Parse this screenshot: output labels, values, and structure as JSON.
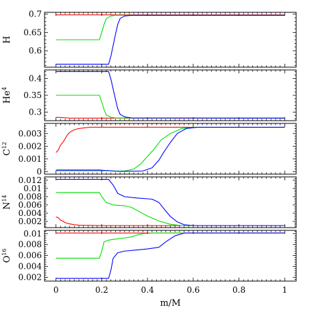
{
  "chart_data": {
    "type": "line",
    "xlabel": "m/M",
    "xlim": [
      -0.05,
      1.05
    ],
    "xticks": [
      0,
      0.2,
      0.4,
      0.6,
      0.8,
      1
    ],
    "xtick_labels": [
      "0",
      "0.2",
      "0.4",
      "0.6",
      "0.8",
      "1"
    ],
    "grid": false,
    "panels": [
      {
        "ylabel": "H",
        "ylabel_sup": "",
        "ylim": [
          0.555,
          0.705
        ],
        "yticks": [
          0.6,
          0.65,
          0.7
        ],
        "ytick_labels": [
          "0.6",
          "0.65",
          "0.7"
        ],
        "series": [
          {
            "color": "#ff0000",
            "x": [
              0,
              1
            ],
            "y": [
              0.698,
              0.698
            ]
          },
          {
            "color": "#00dd00",
            "x": [
              0,
              0.19,
              0.2,
              0.21,
              0.22,
              0.24,
              0.26,
              1
            ],
            "y": [
              0.63,
              0.63,
              0.65,
              0.672,
              0.688,
              0.695,
              0.697,
              0.697
            ]
          },
          {
            "color": "#0000ff",
            "x": [
              0,
              0.23,
              0.24,
              0.25,
              0.26,
              0.27,
              0.28,
              0.3,
              0.33,
              1
            ],
            "y": [
              0.563,
              0.563,
              0.585,
              0.615,
              0.645,
              0.672,
              0.688,
              0.695,
              0.697,
              0.697
            ]
          }
        ]
      },
      {
        "ylabel": "He",
        "ylabel_sup": "4",
        "ylim": [
          0.275,
          0.425
        ],
        "yticks": [
          0.3,
          0.35,
          0.4
        ],
        "ytick_labels": [
          "0.3",
          "0.35",
          "0.4"
        ],
        "series": [
          {
            "color": "#ff0000",
            "x": [
              0,
              0.03,
              0.06,
              0.1,
              1
            ],
            "y": [
              0.285,
              0.284,
              0.2825,
              0.2825,
              0.2825
            ]
          },
          {
            "color": "#00dd00",
            "x": [
              0,
              0.19,
              0.2,
              0.21,
              0.22,
              0.24,
              0.26,
              1
            ],
            "y": [
              0.35,
              0.35,
              0.33,
              0.308,
              0.292,
              0.285,
              0.283,
              0.2825
            ]
          },
          {
            "color": "#0000ff",
            "x": [
              0,
              0.23,
              0.24,
              0.25,
              0.26,
              0.27,
              0.28,
              0.3,
              0.33,
              1
            ],
            "y": [
              0.42,
              0.42,
              0.398,
              0.368,
              0.338,
              0.31,
              0.294,
              0.286,
              0.283,
              0.2825
            ]
          }
        ]
      },
      {
        "ylabel": "C",
        "ylabel_sup": "12",
        "ylim": [
          -0.0002,
          0.0038
        ],
        "yticks": [
          0,
          0.001,
          0.002,
          0.003
        ],
        "ytick_labels": [
          "0",
          "0.001",
          "0.002",
          "0.003"
        ],
        "series": [
          {
            "color": "#ff0000",
            "x": [
              0,
              0.01,
              0.02,
              0.03,
              0.04,
              0.05,
              0.06,
              0.08,
              0.1,
              0.15,
              0.2,
              0.3,
              1
            ],
            "y": [
              0.0015,
              0.0017,
              0.0021,
              0.0023,
              0.0026,
              0.0029,
              0.0031,
              0.0033,
              0.0034,
              0.0035,
              0.0035,
              0.0035,
              0.0035
            ]
          },
          {
            "color": "#00dd00",
            "x": [
              0,
              0.19,
              0.21,
              0.25,
              0.3,
              0.34,
              0.37,
              0.4,
              0.43,
              0.46,
              0.5,
              0.55,
              0.6,
              1
            ],
            "y": [
              0.00015,
              0.00015,
              0.0001,
              5e-05,
              5e-05,
              0.0002,
              0.0006,
              0.0012,
              0.0018,
              0.0025,
              0.003,
              0.0034,
              0.0035,
              0.0035
            ]
          },
          {
            "color": "#0000ff",
            "x": [
              0,
              0.23,
              0.26,
              0.3,
              0.38,
              0.42,
              0.45,
              0.47,
              0.5,
              0.53,
              0.57,
              0.62,
              1
            ],
            "y": [
              8e-05,
              8e-05,
              3e-05,
              2e-05,
              5e-05,
              0.0003,
              0.0009,
              0.0015,
              0.0023,
              0.003,
              0.0034,
              0.0035,
              0.0035
            ]
          }
        ]
      },
      {
        "ylabel": "N",
        "ylabel_sup": "14",
        "ylim": [
          0.0005,
          0.0128
        ],
        "yticks": [
          0.002,
          0.004,
          0.006,
          0.008,
          0.01,
          0.012
        ],
        "ytick_labels": [
          "0.002",
          "0.004",
          "0.006",
          "0.008",
          "0.01",
          "0.012"
        ],
        "series": [
          {
            "color": "#ff0000",
            "x": [
              0,
              0.01,
              0.02,
              0.03,
              0.04,
              0.06,
              0.08,
              0.1,
              0.2,
              1
            ],
            "y": [
              0.0031,
              0.0029,
              0.0023,
              0.0021,
              0.0017,
              0.0014,
              0.0012,
              0.0011,
              0.001,
              0.001
            ]
          },
          {
            "color": "#00dd00",
            "x": [
              0,
              0.19,
              0.2,
              0.22,
              0.25,
              0.3,
              0.33,
              0.36,
              0.4,
              0.45,
              0.5,
              0.55,
              0.6,
              1
            ],
            "y": [
              0.009,
              0.009,
              0.008,
              0.0066,
              0.006,
              0.0058,
              0.0054,
              0.0045,
              0.0033,
              0.0021,
              0.0013,
              0.001,
              0.001,
              0.001
            ]
          },
          {
            "color": "#0000ff",
            "x": [
              0,
              0.23,
              0.25,
              0.27,
              0.3,
              0.35,
              0.42,
              0.45,
              0.47,
              0.5,
              0.53,
              0.56,
              0.6,
              1
            ],
            "y": [
              0.0122,
              0.0122,
              0.0108,
              0.0088,
              0.008,
              0.0077,
              0.0074,
              0.0066,
              0.0052,
              0.0032,
              0.0019,
              0.0012,
              0.001,
              0.001
            ]
          }
        ]
      },
      {
        "ylabel": "O",
        "ylabel_sup": "16",
        "ylim": [
          0.0013,
          0.0106
        ],
        "yticks": [
          0.002,
          0.004,
          0.006,
          0.008,
          0.01
        ],
        "ytick_labels": [
          "0.002",
          "0.004",
          "0.006",
          "0.008",
          "0.01"
        ],
        "series": [
          {
            "color": "#ff0000",
            "x": [
              0,
              1
            ],
            "y": [
              0.0101,
              0.0101
            ]
          },
          {
            "color": "#00dd00",
            "x": [
              0,
              0.19,
              0.2,
              0.21,
              0.23,
              0.26,
              0.3,
              0.33,
              0.35,
              0.38,
              0.42,
              1
            ],
            "y": [
              0.0055,
              0.0055,
              0.0068,
              0.0085,
              0.0088,
              0.009,
              0.0092,
              0.0094,
              0.0097,
              0.01,
              0.0101,
              0.0101
            ]
          },
          {
            "color": "#0000ff",
            "x": [
              0,
              0.23,
              0.24,
              0.25,
              0.27,
              0.3,
              0.35,
              0.4,
              0.45,
              0.48,
              0.52,
              0.56,
              1
            ],
            "y": [
              0.0018,
              0.0018,
              0.0033,
              0.0055,
              0.0065,
              0.0068,
              0.007,
              0.0072,
              0.0075,
              0.0085,
              0.0096,
              0.0101,
              0.0101
            ]
          }
        ]
      }
    ]
  }
}
